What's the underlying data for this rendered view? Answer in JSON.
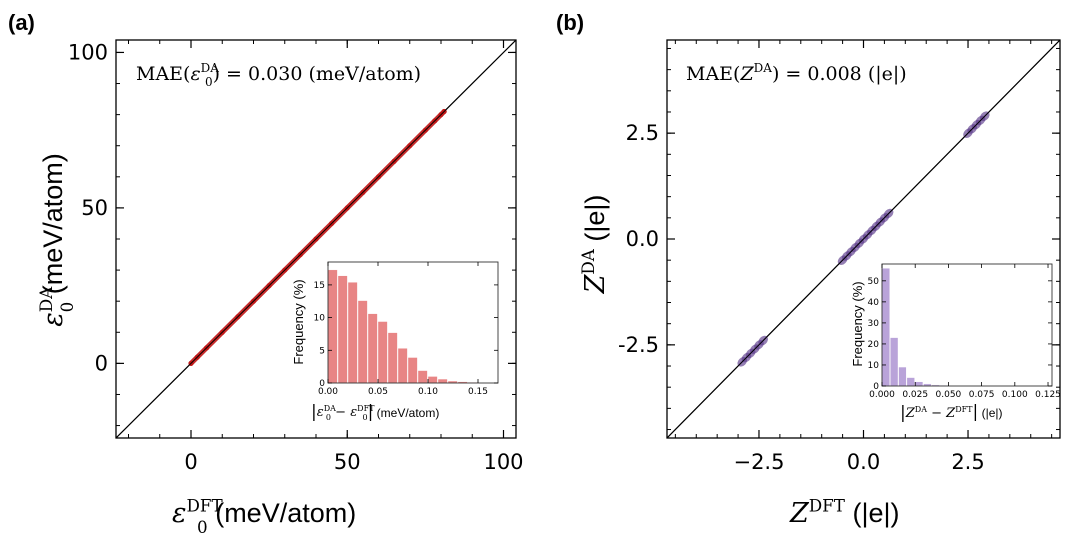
{
  "chart_data": [
    {
      "panel": "(a)",
      "type": "scatter",
      "annotation": {
        "prefix": "MAE(",
        "sym": "ε",
        "sub": "0",
        "sup": "DA",
        "suffix": ") = 0.030 (meV/atom)"
      },
      "xlabel": {
        "sym": "ε",
        "sub": "0",
        "sup": "DFT",
        "unit": " (meV/atom)"
      },
      "ylabel": {
        "sym": "ε",
        "sub": "0",
        "sup": "DA",
        "unit": " (meV/atom)"
      },
      "xlim": [
        -24,
        104
      ],
      "ylim": [
        -24,
        104
      ],
      "xticks": [
        0,
        50,
        100
      ],
      "yticks": [
        0,
        50,
        100
      ],
      "xtick_labels": [
        "0",
        "50",
        "100"
      ],
      "ytick_labels": [
        "0",
        "50",
        "100"
      ],
      "identity_line": true,
      "point_color": "#c01515",
      "series": [
        {
          "x": [
            0,
            2,
            5,
            10,
            15,
            20,
            25,
            30,
            35,
            40,
            45,
            50,
            55,
            60,
            65,
            70,
            75,
            78,
            80,
            81
          ],
          "y": [
            0,
            2,
            5,
            10,
            15,
            20,
            25,
            30,
            35,
            40,
            45,
            50,
            55,
            60,
            65,
            70,
            75,
            78,
            80,
            81
          ]
        }
      ],
      "inset": {
        "type": "histogram",
        "xlabel": {
          "sym": "ε",
          "sub": "0",
          "sup1": "DA",
          "sup2": "DFT",
          "unit": " (meV/atom)"
        },
        "ylabel": "Frequency (%)",
        "xlim": [
          0,
          0.17
        ],
        "ylim": [
          0,
          18.5
        ],
        "xticks": [
          0,
          0.05,
          0.1,
          0.15
        ],
        "xtick_labels": [
          "0.00",
          "0.05",
          "0.10",
          "0.15"
        ],
        "yticks": [
          0,
          5,
          10,
          15
        ],
        "ytick_labels": [
          "0",
          "5",
          "10",
          "15"
        ],
        "bin_width": 0.01,
        "bin_start": 0,
        "values": [
          17.3,
          16.4,
          15.4,
          12.6,
          10.6,
          9.4,
          7.7,
          5.3,
          3.9,
          1.9,
          1.0,
          0.6,
          0.3,
          0.2,
          0.1
        ],
        "color": "#e88585"
      }
    },
    {
      "panel": "(b)",
      "type": "scatter",
      "annotation": {
        "prefix": "MAE(",
        "sym": "Z",
        "sup": "DA",
        "suffix": ") = 0.008 (|e|)"
      },
      "xlabel": {
        "sym": "Z",
        "sup": "DFT",
        "unit": " (|e|)"
      },
      "ylabel": {
        "sym": "Z",
        "sup": "DA",
        "unit": " (|e|)"
      },
      "xlim": [
        -4.7,
        4.7
      ],
      "ylim": [
        -4.7,
        4.7
      ],
      "xticks": [
        -2.5,
        0.0,
        2.5
      ],
      "yticks": [
        -2.5,
        0.0,
        2.5
      ],
      "xtick_labels": [
        "−2.5",
        "0.0",
        "2.5"
      ],
      "ytick_labels": [
        "-2.5",
        "0.0",
        "2.5"
      ],
      "identity_line": true,
      "point_color": "#5a3a8a",
      "series": [
        {
          "x": [
            -2.9,
            -2.8,
            -2.7,
            -2.6,
            -2.5,
            -2.4,
            -0.5,
            -0.4,
            -0.3,
            -0.2,
            -0.1,
            0.0,
            0.1,
            0.2,
            0.3,
            0.4,
            0.5,
            0.6,
            2.5,
            2.6,
            2.7,
            2.8,
            2.9
          ],
          "y": [
            -2.9,
            -2.8,
            -2.7,
            -2.6,
            -2.5,
            -2.4,
            -0.5,
            -0.4,
            -0.3,
            -0.2,
            -0.1,
            0.0,
            0.1,
            0.2,
            0.3,
            0.4,
            0.5,
            0.6,
            2.5,
            2.6,
            2.7,
            2.8,
            2.9
          ]
        }
      ],
      "inset": {
        "type": "histogram",
        "xlabel": {
          "sym": "Z",
          "sup1": "DA",
          "sup2": "DFT",
          "unit": " (|e|)"
        },
        "ylabel": "Frequency (%)",
        "xlim": [
          0,
          0.128
        ],
        "ylim": [
          0,
          58
        ],
        "xticks": [
          0,
          0.025,
          0.05,
          0.075,
          0.1,
          0.125
        ],
        "xtick_labels": [
          "0.000",
          "0.025",
          "0.050",
          "0.075",
          "0.100",
          "0.125"
        ],
        "yticks": [
          0,
          10,
          20,
          30,
          40,
          50
        ],
        "ytick_labels": [
          "0",
          "10",
          "20",
          "30",
          "40",
          "50"
        ],
        "bin_width": 0.00625,
        "bin_start": 0,
        "values": [
          56,
          23,
          9,
          4,
          2,
          1,
          0.5,
          0.3,
          0.2,
          0.1
        ],
        "color": "#b9a3d9"
      }
    }
  ]
}
